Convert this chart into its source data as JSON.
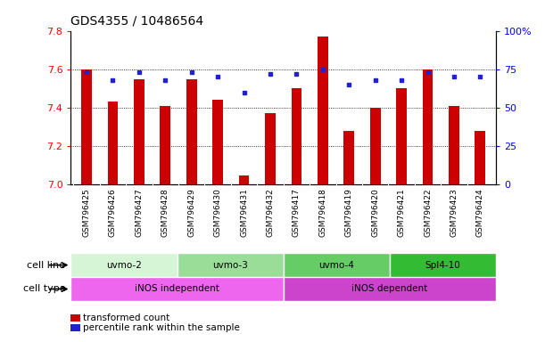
{
  "title": "GDS4355 / 10486564",
  "samples": [
    "GSM796425",
    "GSM796426",
    "GSM796427",
    "GSM796428",
    "GSM796429",
    "GSM796430",
    "GSM796431",
    "GSM796432",
    "GSM796417",
    "GSM796418",
    "GSM796419",
    "GSM796420",
    "GSM796421",
    "GSM796422",
    "GSM796423",
    "GSM796424"
  ],
  "transformed_count": [
    7.6,
    7.43,
    7.55,
    7.41,
    7.55,
    7.44,
    7.05,
    7.37,
    7.5,
    7.77,
    7.28,
    7.4,
    7.5,
    7.6,
    7.41,
    7.28
  ],
  "percentile_rank": [
    73,
    68,
    73,
    68,
    73,
    70,
    60,
    72,
    72,
    75,
    65,
    68,
    68,
    73,
    70,
    70
  ],
  "ylim_left": [
    7.0,
    7.8
  ],
  "ylim_right": [
    0,
    100
  ],
  "yticks_left": [
    7.0,
    7.2,
    7.4,
    7.6,
    7.8
  ],
  "yticks_right": [
    0,
    25,
    50,
    75,
    100
  ],
  "ytick_labels_right": [
    "0",
    "25",
    "50",
    "75",
    "100%"
  ],
  "grid_lines": [
    7.2,
    7.4,
    7.6
  ],
  "bar_color": "#cc0000",
  "dot_color": "#2222cc",
  "cell_line_groups": [
    {
      "label": "uvmo-2",
      "start": 0,
      "end": 3,
      "color": "#d6f5d6"
    },
    {
      "label": "uvmo-3",
      "start": 4,
      "end": 7,
      "color": "#99dd99"
    },
    {
      "label": "uvmo-4",
      "start": 8,
      "end": 11,
      "color": "#66cc66"
    },
    {
      "label": "Spl4-10",
      "start": 12,
      "end": 15,
      "color": "#33bb33"
    }
  ],
  "cell_type_groups": [
    {
      "label": "iNOS independent",
      "start": 0,
      "end": 7,
      "color": "#ee66ee"
    },
    {
      "label": "iNOS dependent",
      "start": 8,
      "end": 15,
      "color": "#cc44cc"
    }
  ],
  "legend_bar_label": "transformed count",
  "legend_dot_label": "percentile rank within the sample",
  "cell_line_label": "cell line",
  "cell_type_label": "cell type",
  "xlabel_bg_color": "#dddddd",
  "plot_bg_color": "#ffffff",
  "spine_color": "#000000"
}
